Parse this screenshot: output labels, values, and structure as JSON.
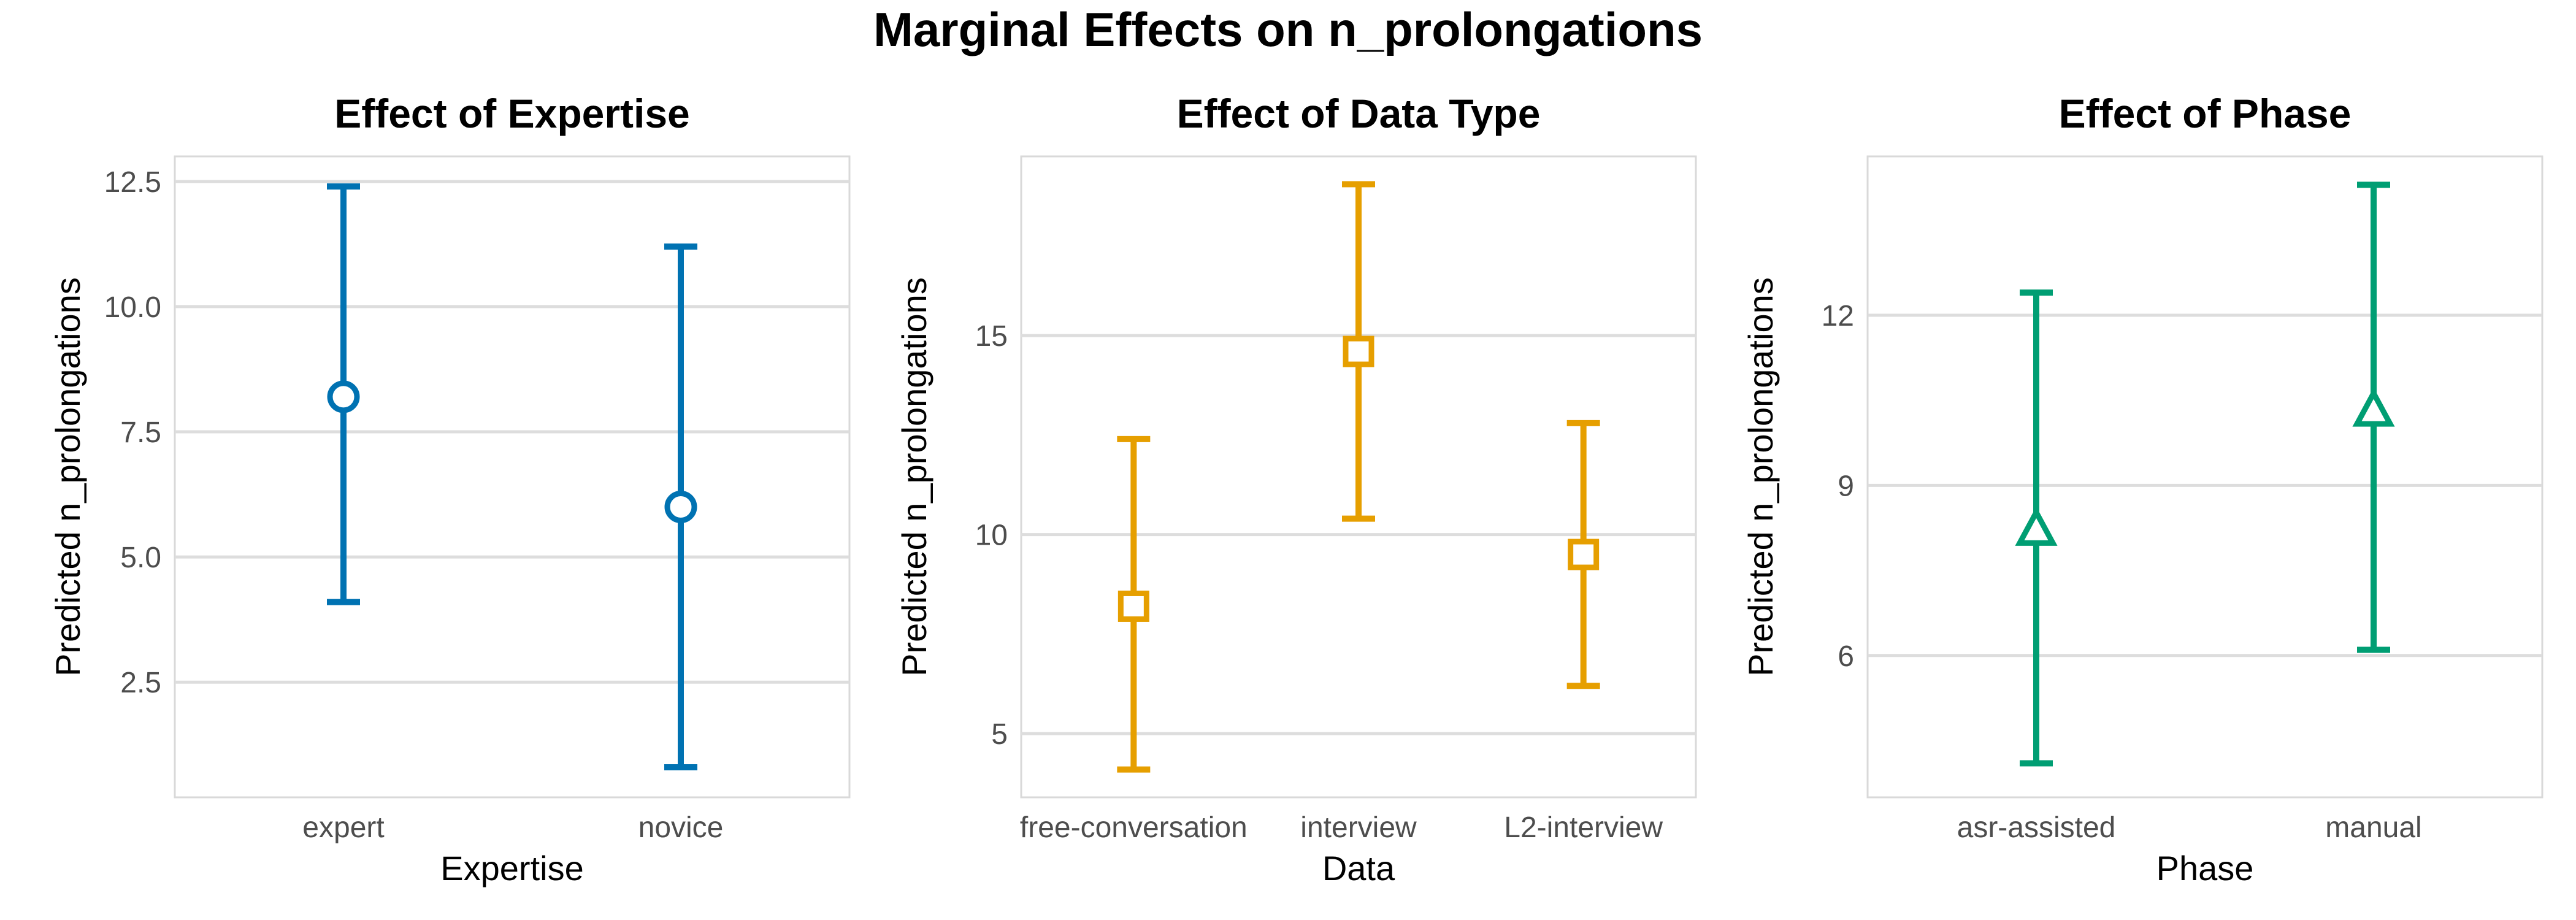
{
  "figure": {
    "title": "Marginal Effects on n_prolongations"
  },
  "chart_data": [
    {
      "type": "errorbar",
      "title": "Effect of Expertise",
      "xlabel": "Expertise",
      "ylabel": "Predicted n_prolongations",
      "color": "#0072B2",
      "marker": "circle",
      "ylim": [
        0.2,
        13.0
      ],
      "yticks": [
        2.5,
        5.0,
        7.5,
        10.0,
        12.5
      ],
      "ytick_labels": [
        "2.5",
        "5.0",
        "7.5",
        "10.0",
        "12.5"
      ],
      "categories": [
        "expert",
        "novice"
      ],
      "estimate": [
        8.2,
        6.0
      ],
      "lower": [
        4.1,
        0.8
      ],
      "upper": [
        12.4,
        11.2
      ]
    },
    {
      "type": "errorbar",
      "title": "Effect of Data Type",
      "xlabel": "Data",
      "ylabel": "Predicted n_prolongations",
      "color": "#E69F00",
      "marker": "square",
      "ylim": [
        3.4,
        19.5
      ],
      "yticks": [
        5,
        10,
        15
      ],
      "ytick_labels": [
        "5",
        "10",
        "15"
      ],
      "categories": [
        "free-conversation",
        "interview",
        "L2-interview"
      ],
      "estimate": [
        8.2,
        14.6,
        9.5
      ],
      "lower": [
        4.1,
        10.4,
        6.2
      ],
      "upper": [
        12.4,
        18.8,
        12.8
      ]
    },
    {
      "type": "errorbar",
      "title": "Effect of Phase",
      "xlabel": "Phase",
      "ylabel": "Predicted n_prolongations",
      "color": "#009E73",
      "marker": "triangle",
      "ylim": [
        3.5,
        14.8
      ],
      "yticks": [
        6,
        9,
        12
      ],
      "ytick_labels": [
        "6",
        "9",
        "12"
      ],
      "categories": [
        "asr-assisted",
        "manual"
      ],
      "estimate": [
        8.2,
        10.3
      ],
      "lower": [
        4.1,
        6.1
      ],
      "upper": [
        12.4,
        14.3
      ]
    }
  ]
}
